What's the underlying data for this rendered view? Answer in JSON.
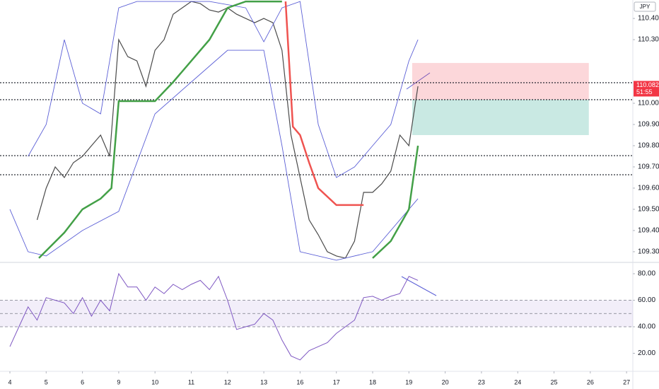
{
  "chart_data": [
    {
      "type": "price",
      "currency": "JPY",
      "last_price": 110.082,
      "countdown": "51:55",
      "xlim": [
        -0.273,
        17.173
      ],
      "xticks": [
        {
          "value": 0,
          "label": "4"
        },
        {
          "value": 1,
          "label": "5"
        },
        {
          "value": 2,
          "label": "6"
        },
        {
          "value": 3,
          "label": "9"
        },
        {
          "value": 4,
          "label": "10"
        },
        {
          "value": 5,
          "label": "11"
        },
        {
          "value": 6,
          "label": "12"
        },
        {
          "value": 7,
          "label": "13"
        },
        {
          "value": 8,
          "label": "16"
        },
        {
          "value": 9,
          "label": "17"
        },
        {
          "value": 10,
          "label": "18"
        },
        {
          "value": 11,
          "label": "19"
        },
        {
          "value": 12,
          "label": "20"
        },
        {
          "value": 13,
          "label": "23"
        },
        {
          "value": 14,
          "label": "24"
        },
        {
          "value": 15,
          "label": "25"
        },
        {
          "value": 16,
          "label": "26"
        },
        {
          "value": 17,
          "label": "27"
        }
      ],
      "ylim": [
        109.253,
        110.487
      ],
      "yticks": [
        {
          "value": 109.3,
          "label": "109.300"
        },
        {
          "value": 109.4,
          "label": "109.400"
        },
        {
          "value": 109.5,
          "label": "109.500"
        },
        {
          "value": 109.6,
          "label": "109.600"
        },
        {
          "value": 109.7,
          "label": "109.700"
        },
        {
          "value": 109.8,
          "label": "109.800"
        },
        {
          "value": 109.9,
          "label": "109.900"
        },
        {
          "value": 110.0,
          "label": "110.000"
        },
        {
          "value": 110.3,
          "label": "110.300"
        },
        {
          "value": 110.4,
          "label": "110.400"
        }
      ],
      "levels": [
        110.097,
        110.017,
        109.753,
        109.663
      ],
      "position": {
        "x_start": 11.09,
        "x_end": 15.96,
        "stop": 110.19,
        "entry": 110.017,
        "target": 109.85
      },
      "series": [
        {
          "name": "Close",
          "color": "#4a4a4a",
          "x": [
            0.75,
            1,
            1.25,
            1.5,
            1.75,
            2,
            2.25,
            2.5,
            2.75,
            3,
            3.25,
            3.5,
            3.75,
            4,
            4.25,
            4.5,
            4.75,
            5,
            5.25,
            5.5,
            5.75,
            6,
            6.25,
            6.5,
            6.75,
            7,
            7.25,
            7.5,
            7.75,
            8,
            8.25,
            8.5,
            8.75,
            9,
            9.25,
            9.5,
            9.75,
            10,
            10.25,
            10.5,
            10.75,
            11,
            11.25
          ],
          "values": [
            109.45,
            109.6,
            109.7,
            109.65,
            109.72,
            109.75,
            109.8,
            109.85,
            109.75,
            110.3,
            110.22,
            110.2,
            110.08,
            110.25,
            110.3,
            110.42,
            110.45,
            110.48,
            110.47,
            110.44,
            110.43,
            110.45,
            110.42,
            110.4,
            110.38,
            110.4,
            110.38,
            110.25,
            109.85,
            109.65,
            109.45,
            109.38,
            109.3,
            109.28,
            109.27,
            109.35,
            109.58,
            109.58,
            109.62,
            109.68,
            109.85,
            109.8,
            110.08
          ]
        },
        {
          "name": "Upper band",
          "color": "#5b5fd6",
          "x": [
            0.5,
            1,
            1.5,
            2,
            2.5,
            3,
            3.5,
            4.5,
            5.5,
            6.5,
            7,
            7.5,
            8,
            8.5,
            9,
            9.5,
            10,
            10.5,
            11,
            11.25
          ],
          "values": [
            109.75,
            109.9,
            110.3,
            110.0,
            109.95,
            110.45,
            110.48,
            110.48,
            110.48,
            110.45,
            110.29,
            110.45,
            110.48,
            109.9,
            109.65,
            109.7,
            109.8,
            109.9,
            110.2,
            110.3
          ]
        },
        {
          "name": "Lower band",
          "color": "#5b5fd6",
          "x": [
            0,
            0.5,
            1,
            2,
            3,
            4,
            5,
            6,
            7,
            7.5,
            8,
            9,
            10,
            11,
            11.25
          ],
          "values": [
            109.5,
            109.3,
            109.28,
            109.4,
            109.49,
            109.95,
            110.1,
            110.25,
            110.25,
            109.8,
            109.3,
            109.26,
            109.3,
            109.5,
            109.55
          ]
        },
        {
          "name": "Supertrend up",
          "color": "#43a047",
          "x": [
            0.8,
            1.5,
            2,
            2.5,
            2.8,
            3,
            4,
            4.5,
            5.5,
            6,
            6.5,
            7.5,
            7.6,
            8,
            8.5,
            9,
            9.75,
            10,
            10.5,
            11,
            11.25
          ],
          "values": [
            109.27,
            109.39,
            109.5,
            109.55,
            109.6,
            110.01,
            110.01,
            110.1,
            110.3,
            110.45,
            110.48,
            110.48,
            null,
            null,
            null,
            null,
            null,
            109.27,
            109.35,
            109.5,
            109.8
          ]
        },
        {
          "name": "Supertrend down",
          "color": "#ef5350",
          "x": [
            7.6,
            7.8,
            8,
            8.25,
            8.5,
            9,
            9.75
          ],
          "values": [
            110.48,
            109.89,
            109.85,
            109.72,
            109.6,
            109.52,
            109.52
          ]
        }
      ]
    },
    {
      "type": "line",
      "ylim": [
        9.07,
        86.4
      ],
      "yticks": [
        {
          "value": 20,
          "label": "20.00"
        },
        {
          "value": 40,
          "label": "40.00"
        },
        {
          "value": 60,
          "label": "60.00"
        },
        {
          "value": 80,
          "label": "80.00"
        }
      ],
      "band": [
        40,
        60
      ],
      "midline": 50,
      "series": [
        {
          "name": "RSI",
          "color": "#7e57c2",
          "x": [
            0,
            0.25,
            0.5,
            0.75,
            1,
            1.25,
            1.5,
            1.75,
            2,
            2.25,
            2.5,
            2.75,
            3,
            3.25,
            3.5,
            3.75,
            4,
            4.25,
            4.5,
            4.75,
            5,
            5.25,
            5.5,
            5.75,
            6,
            6.25,
            6.5,
            6.75,
            7,
            7.25,
            7.5,
            7.75,
            8,
            8.25,
            8.5,
            8.75,
            9,
            9.25,
            9.5,
            9.75,
            10,
            10.25,
            10.5,
            10.75,
            11,
            11.25
          ],
          "values": [
            25,
            40,
            55,
            45,
            62,
            60,
            58,
            50,
            62,
            48,
            60,
            52,
            80,
            70,
            70,
            60,
            70,
            65,
            72,
            68,
            72,
            75,
            68,
            78,
            60,
            38,
            40,
            42,
            50,
            45,
            30,
            18,
            15,
            22,
            25,
            28,
            35,
            40,
            45,
            62,
            63,
            60,
            63,
            65,
            78,
            75
          ]
        }
      ]
    }
  ]
}
